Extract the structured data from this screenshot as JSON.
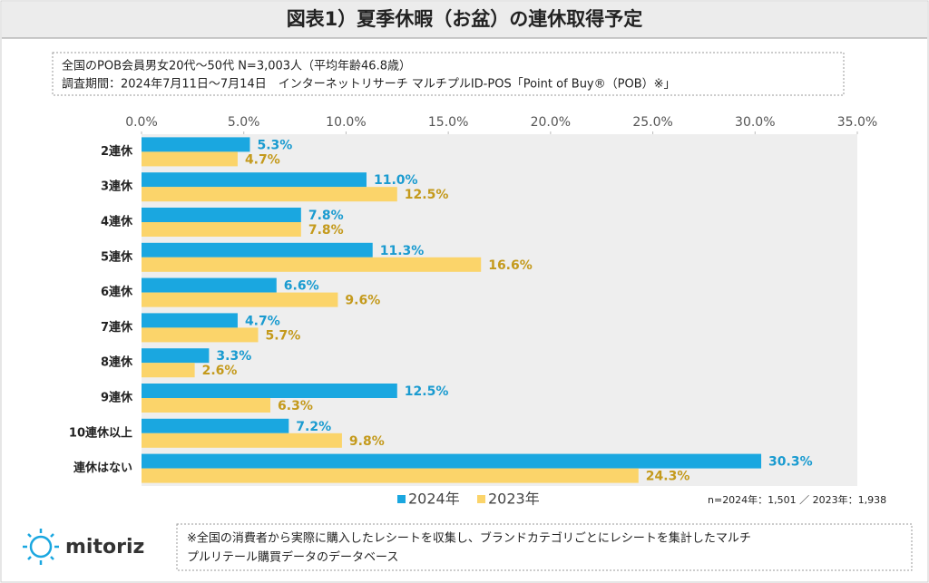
{
  "chart_data": {
    "type": "bar",
    "orientation": "horizontal",
    "title": "図表1）夏季休暇（お盆）の連休取得予定",
    "info_lines": [
      "全国のPOB会員男女20代～50代 N=3,003人（平均年齢46.8歳）",
      "調査期間：2024年7月11日～7月14日　インターネットリサーチ マルチプルID-POS「Point of Buy®（POB）※」"
    ],
    "categories": [
      "2連休",
      "3連休",
      "4連休",
      "5連休",
      "6連休",
      "7連休",
      "8連休",
      "9連休",
      "10連休以上",
      "連休はない"
    ],
    "series": [
      {
        "name": "2024年",
        "color": "#1aa7e0",
        "label_color": "#1a9bd0",
        "values": [
          5.3,
          11.0,
          7.8,
          11.3,
          6.6,
          4.7,
          3.3,
          12.5,
          7.2,
          30.3
        ],
        "value_labels": [
          "5.3%",
          "11.0%",
          "7.8%",
          "11.3%",
          "6.6%",
          "4.7%",
          "3.3%",
          "12.5%",
          "7.2%",
          "30.3%"
        ]
      },
      {
        "name": "2023年",
        "color": "#fbd46a",
        "label_color": "#c49a1c",
        "values": [
          4.7,
          12.5,
          7.8,
          16.6,
          9.6,
          5.7,
          2.6,
          6.3,
          9.8,
          24.3
        ],
        "value_labels": [
          "4.7%",
          "12.5%",
          "7.8%",
          "16.6%",
          "9.6%",
          "5.7%",
          "2.6%",
          "6.3%",
          "9.8%",
          "24.3%"
        ]
      }
    ],
    "xlim": [
      0,
      35
    ],
    "xticks": [
      {
        "value": 0,
        "label": "0.0%"
      },
      {
        "value": 5,
        "label": "5.0%"
      },
      {
        "value": 10,
        "label": "10.0%"
      },
      {
        "value": 15,
        "label": "15.0%"
      },
      {
        "value": 20,
        "label": "20.0%"
      },
      {
        "value": 25,
        "label": "25.0%"
      },
      {
        "value": 30,
        "label": "30.0%"
      },
      {
        "value": 35,
        "label": "35.0%"
      }
    ],
    "sample_note": "n=2024年：1,501 ／ 2023年：1,938",
    "footnote_lines": [
      "※全国の消費者から実際に購入したレシートを収集し、ブランドカテゴリごとにレシートを集計したマルチ",
      "プルリテール購買データのデータベース"
    ],
    "logo": "mitoriz"
  }
}
